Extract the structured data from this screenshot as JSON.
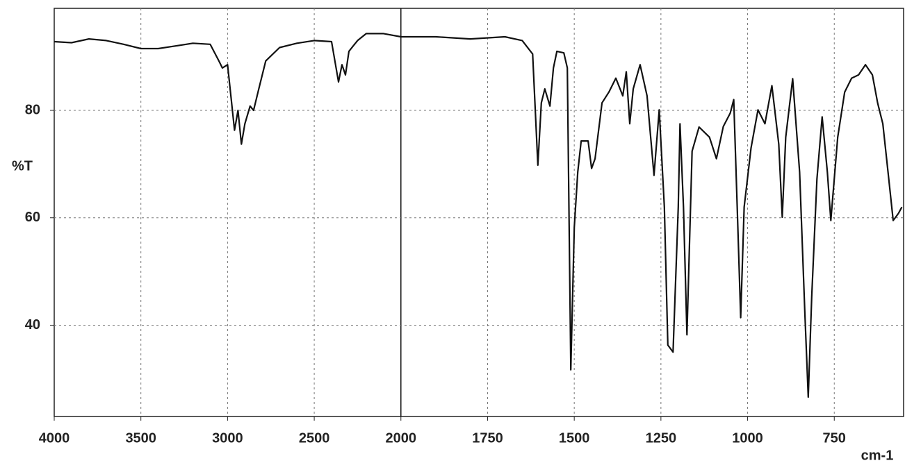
{
  "chart_data": {
    "type": "line",
    "ylabel": "%T",
    "xlabel": "cm-1",
    "x": [
      4000,
      3900,
      3800,
      3700,
      3600,
      3500,
      3400,
      3300,
      3200,
      3100,
      3050,
      3030,
      3000,
      2960,
      2940,
      2920,
      2900,
      2870,
      2850,
      2820,
      2780,
      2700,
      2600,
      2500,
      2400,
      2360,
      2340,
      2320,
      2300,
      2250,
      2200,
      2100,
      2000,
      1900,
      1800,
      1700,
      1650,
      1620,
      1605,
      1595,
      1585,
      1570,
      1560,
      1550,
      1530,
      1520,
      1510,
      1500,
      1490,
      1480,
      1460,
      1450,
      1440,
      1420,
      1400,
      1380,
      1360,
      1350,
      1340,
      1330,
      1310,
      1290,
      1270,
      1255,
      1240,
      1230,
      1215,
      1200,
      1195,
      1185,
      1175,
      1160,
      1140,
      1110,
      1090,
      1070,
      1050,
      1040,
      1030,
      1020,
      1010,
      990,
      970,
      950,
      930,
      910,
      900,
      890,
      870,
      850,
      835,
      825,
      815,
      800,
      785,
      770,
      760,
      740,
      720,
      700,
      680,
      660,
      640,
      625,
      610,
      595,
      580,
      565,
      555
    ],
    "values": [
      92.8,
      92.6,
      93.3,
      93,
      92.3,
      91.5,
      91.5,
      92,
      92.5,
      92.3,
      89.2,
      87.9,
      88.5,
      76.3,
      80,
      73.7,
      77.5,
      80.8,
      80,
      84,
      89.2,
      91.7,
      92.5,
      93,
      92.8,
      85.3,
      88.5,
      86.6,
      91,
      93,
      94.3,
      94.3,
      93.7,
      93.7,
      93.3,
      93.7,
      93,
      90.5,
      69.8,
      81.4,
      84,
      80.8,
      87.9,
      91,
      90.7,
      87.9,
      31.7,
      58.2,
      68.5,
      74.3,
      74.3,
      69.2,
      71,
      81.4,
      83.4,
      86,
      82.7,
      87.2,
      77.5,
      84,
      88.5,
      82.7,
      67.9,
      80.1,
      62,
      36.3,
      35,
      62,
      77.5,
      62,
      38.2,
      72.4,
      76.9,
      75,
      71,
      77,
      79.5,
      82,
      62,
      41.4,
      62,
      73,
      80.1,
      77.5,
      84.6,
      73.7,
      60.1,
      75,
      85.9,
      68.5,
      42.7,
      26.6,
      45.3,
      67.2,
      78.8,
      68.5,
      59.5,
      75,
      83.4,
      86,
      86.6,
      88.5,
      86.6,
      81.4,
      77.5,
      68.5,
      59.5,
      60.8,
      62
    ],
    "color": "#111111",
    "xlim": [
      4000,
      550
    ],
    "xticks": [
      4000,
      3500,
      3000,
      2500,
      2000,
      1750,
      1500,
      1250,
      1000,
      750
    ],
    "ylim": [
      23,
      99
    ],
    "yticks": [
      40,
      60,
      80
    ],
    "grid": true
  }
}
